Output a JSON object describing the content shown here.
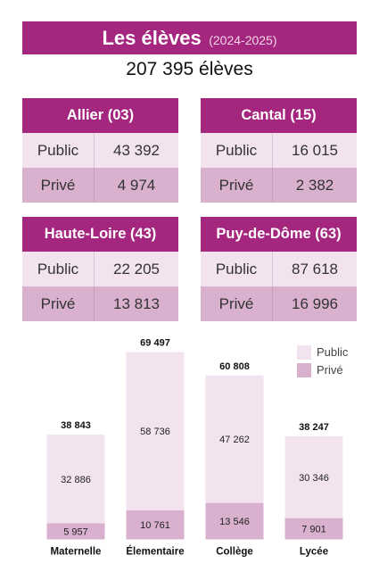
{
  "header": {
    "title": "Les élèves",
    "period": "(2024-2025)"
  },
  "total": "207 395 élèves",
  "departments": [
    {
      "name": "Allier (03)",
      "public_label": "Public",
      "public": "43 392",
      "prive_label": "Privé",
      "prive": "4 974"
    },
    {
      "name": "Cantal (15)",
      "public_label": "Public",
      "public": "16 015",
      "prive_label": "Privé",
      "prive": "2 382"
    },
    {
      "name": "Haute-Loire (43)",
      "public_label": "Public",
      "public": "22 205",
      "prive_label": "Privé",
      "prive": "13 813"
    },
    {
      "name": "Puy-de-Dôme (63)",
      "public_label": "Public",
      "public": "87 618",
      "prive_label": "Privé",
      "prive": "16 996"
    }
  ],
  "colors": {
    "brand": "#a5267f",
    "public": "#f2e3ef",
    "prive": "#d9b1cf"
  },
  "chart_data": {
    "type": "bar",
    "stacked": true,
    "categories": [
      "Maternelle",
      "Élementaire",
      "Collège",
      "Lycée"
    ],
    "series": [
      {
        "name": "Privé",
        "values": [
          5957,
          10761,
          13546,
          7901
        ],
        "labels": [
          "5 957",
          "10 761",
          "13 546",
          "7 901"
        ],
        "color": "#d9b1cf"
      },
      {
        "name": "Public",
        "values": [
          32886,
          58736,
          47262,
          30346
        ],
        "labels": [
          "32 886",
          "58 736",
          "47 262",
          "30 346"
        ],
        "color": "#f2e3ef"
      }
    ],
    "totals": [
      38843,
      69497,
      60808,
      38247
    ],
    "total_labels": [
      "38 843",
      "69 497",
      "60 808",
      "38 247"
    ],
    "legend": {
      "position": "top-right",
      "entries": [
        "Public",
        "Privé"
      ]
    },
    "grid": false
  }
}
